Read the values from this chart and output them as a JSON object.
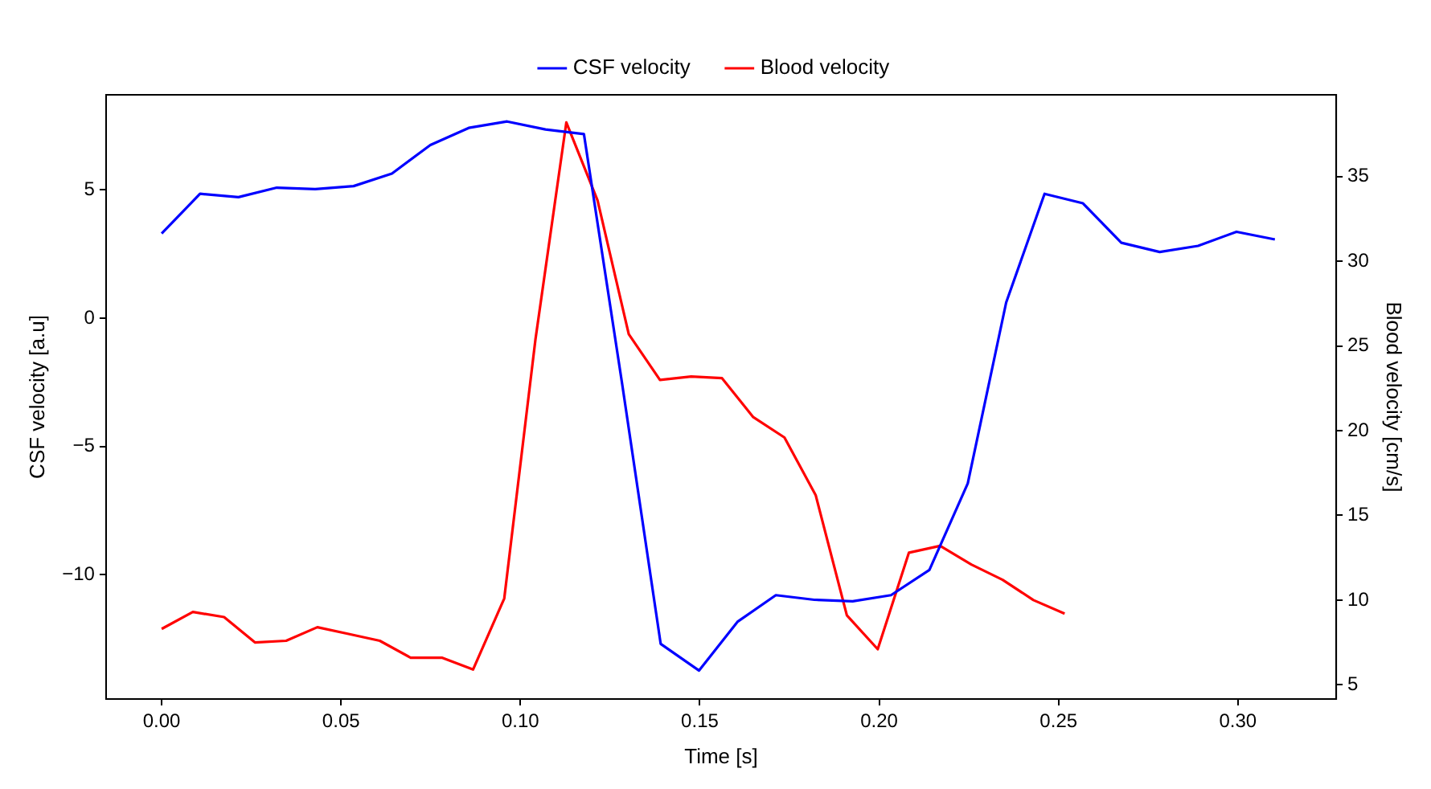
{
  "chart_data": {
    "type": "line",
    "xlabel": "Time [s]",
    "ylabel": "CSF velocity [a.u]",
    "y2label": "Blood velocity [cm/s]",
    "series": [
      {
        "name": "CSF velocity",
        "color": "#0000ff",
        "x": [
          0,
          0.0107,
          0.0214,
          0.0321,
          0.0428,
          0.0535,
          0.0642,
          0.0749,
          0.0856,
          0.0963,
          0.107,
          0.1177,
          0.1284,
          0.1391,
          0.1498,
          0.1605,
          0.1712,
          0.1819,
          0.1926,
          0.2033,
          0.214,
          0.2247,
          0.2354,
          0.2461,
          0.2568,
          0.2675,
          0.2782,
          0.2889,
          0.2996,
          0.3103
        ],
        "values": [
          3.3,
          4.85,
          4.72,
          5.09,
          5.03,
          5.15,
          5.64,
          6.75,
          7.42,
          7.67,
          7.36,
          7.18,
          -2.6,
          -12.7,
          -13.74,
          -11.84,
          -10.8,
          -10.98,
          -11.04,
          -10.8,
          -9.82,
          -6.44,
          0.61,
          4.85,
          4.48,
          2.94,
          2.58,
          2.82,
          3.37,
          3.07
        ]
      },
      {
        "name": "Blood velocity",
        "color": "#ff0000",
        "axis": "y2",
        "x": [
          0,
          0.0087,
          0.0174,
          0.026,
          0.0347,
          0.0434,
          0.0521,
          0.0608,
          0.0694,
          0.0781,
          0.0868,
          0.0955,
          0.1042,
          0.1128,
          0.1215,
          0.1302,
          0.1389,
          0.1476,
          0.1562,
          0.1649,
          0.1736,
          0.1823,
          0.191,
          0.1996,
          0.2083,
          0.217,
          0.2257,
          0.2344,
          0.243,
          0.2517
        ],
        "values": [
          8.3,
          9.3,
          9.0,
          7.5,
          7.6,
          8.4,
          8.0,
          7.6,
          6.6,
          6.6,
          5.9,
          10.1,
          25.4,
          38.2,
          33.6,
          25.7,
          23.0,
          23.2,
          23.1,
          20.8,
          19.6,
          16.2,
          9.1,
          7.1,
          12.8,
          13.2,
          12.1,
          11.2,
          10.0,
          9.2
        ]
      }
    ],
    "xlim": [
      -0.0155,
      0.3274
    ],
    "xticks": [
      {
        "value": 0,
        "label": "0.00"
      },
      {
        "value": 0.05,
        "label": "0.05"
      },
      {
        "value": 0.1,
        "label": "0.10"
      },
      {
        "value": 0.15,
        "label": "0.15"
      },
      {
        "value": 0.2,
        "label": "0.20"
      },
      {
        "value": 0.25,
        "label": "0.25"
      },
      {
        "value": 0.3,
        "label": "0.30"
      }
    ],
    "ylim": [
      -14.85,
      8.71
    ],
    "yticks": [
      {
        "value": -10,
        "label": "−10"
      },
      {
        "value": -5,
        "label": "−5"
      },
      0,
      5
    ],
    "y2lim": [
      4.16,
      39.83
    ],
    "y2ticks": [
      5,
      10,
      15,
      20,
      25,
      30,
      35
    ],
    "legend": "top",
    "marker": "none",
    "line_style": "solid",
    "grid": false
  }
}
